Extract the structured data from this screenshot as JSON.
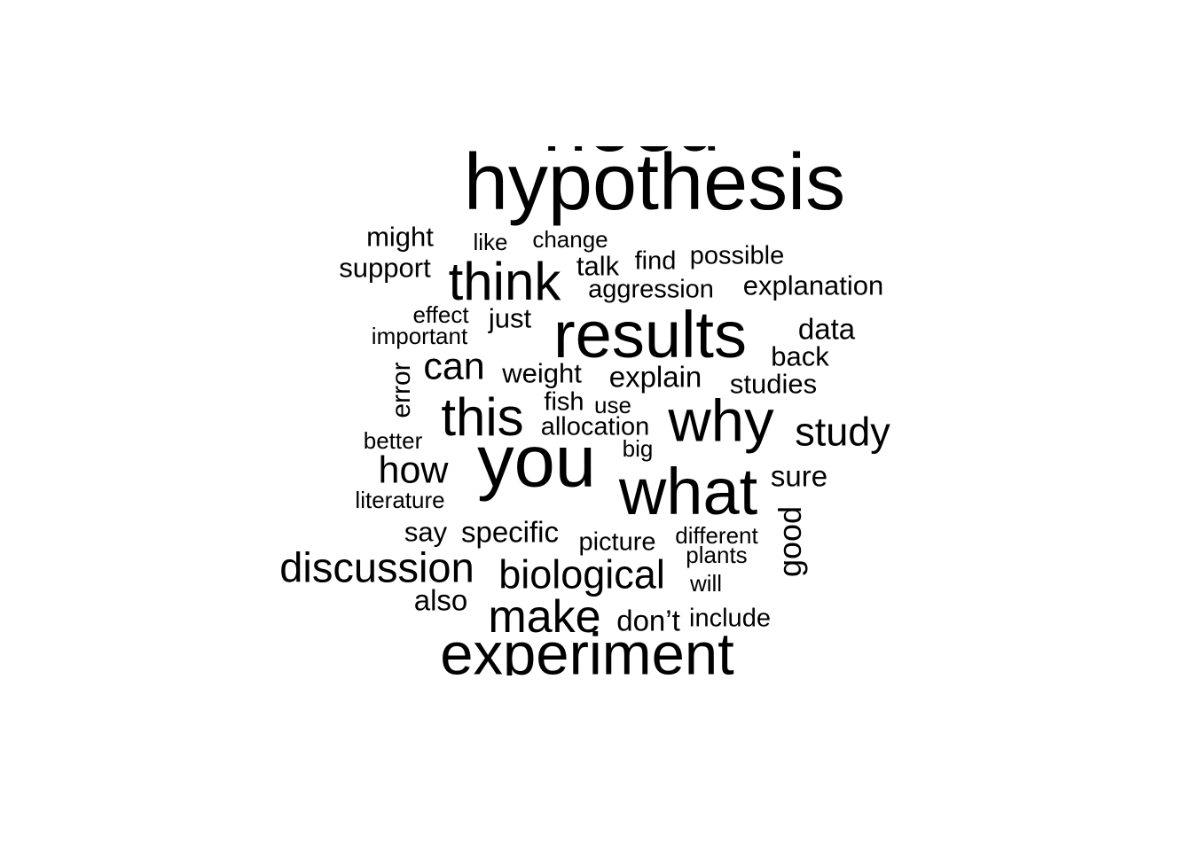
{
  "words": {
    "need": "need",
    "hypothesis": "hypothesis",
    "might": "might",
    "like": "like",
    "change": "change",
    "support": "support",
    "think": "think",
    "talk": "talk",
    "find": "find",
    "possible": "possible",
    "aggression": "aggression",
    "explanation": "explanation",
    "effect": "effect",
    "just": "just",
    "important": "important",
    "results": "results",
    "data": "data",
    "back": "back",
    "error": "error",
    "can": "can",
    "weight": "weight",
    "explain": "explain",
    "studies": "studies",
    "fish": "fish",
    "use": "use",
    "this": "this",
    "why": "why",
    "allocation": "allocation",
    "study": "study",
    "better": "better",
    "big": "big",
    "you": "you",
    "how": "how",
    "what": "what",
    "sure": "sure",
    "literature": "literature",
    "good": "good",
    "say": "say",
    "specific": "specific",
    "different": "different",
    "picture": "picture",
    "plants": "plants",
    "discussion": "discussion",
    "biological": "biological",
    "will": "will",
    "also": "also",
    "make": "make",
    "dont": "don’t",
    "include": "include",
    "experiment": "experiment"
  }
}
